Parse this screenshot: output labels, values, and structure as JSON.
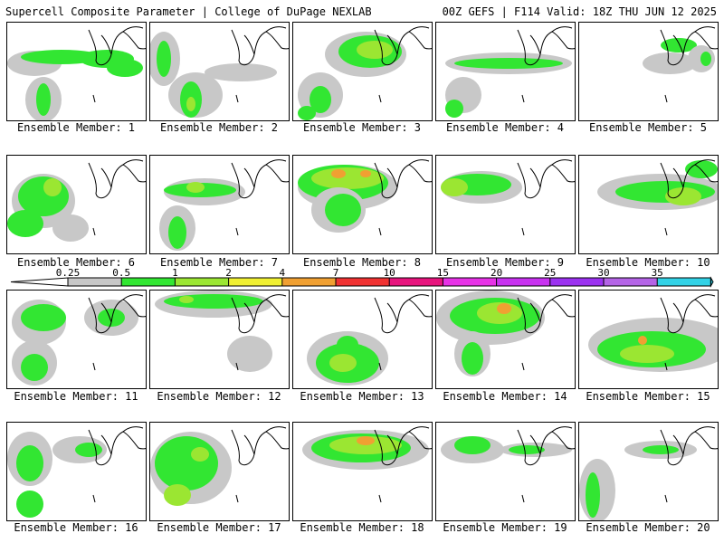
{
  "header": {
    "left": "Supercell Composite Parameter | College of DuPage NEXLAB",
    "right": "00Z GEFS | F114 Valid: 18Z THU JUN 12 2025"
  },
  "legend": {
    "ticks": [
      "0.25",
      "0.5",
      "1",
      "2",
      "4",
      "7",
      "10",
      "15",
      "20",
      "25",
      "30",
      "35"
    ],
    "colors": [
      "#c8c8c8",
      "#32e632",
      "#9be632",
      "#f0f032",
      "#f0a032",
      "#f03232",
      "#e6147d",
      "#e632e6",
      "#c832f0",
      "#9b32f0",
      "#b464e6",
      "#32d2e6"
    ]
  },
  "panels": [
    {
      "label": "Ensemble Member: 1"
    },
    {
      "label": "Ensemble Member: 2"
    },
    {
      "label": "Ensemble Member: 3"
    },
    {
      "label": "Ensemble Member: 4"
    },
    {
      "label": "Ensemble Member: 5"
    },
    {
      "label": "Ensemble Member: 6"
    },
    {
      "label": "Ensemble Member: 7"
    },
    {
      "label": "Ensemble Member: 8"
    },
    {
      "label": "Ensemble Member: 9"
    },
    {
      "label": "Ensemble Member: 10"
    },
    {
      "label": "Ensemble Member: 11"
    },
    {
      "label": "Ensemble Member: 12"
    },
    {
      "label": "Ensemble Member: 13"
    },
    {
      "label": "Ensemble Member: 14"
    },
    {
      "label": "Ensemble Member: 15"
    },
    {
      "label": "Ensemble Member: 16"
    },
    {
      "label": "Ensemble Member: 17"
    },
    {
      "label": "Ensemble Member: 18"
    },
    {
      "label": "Ensemble Member: 19"
    },
    {
      "label": "Ensemble Member: 20"
    }
  ]
}
